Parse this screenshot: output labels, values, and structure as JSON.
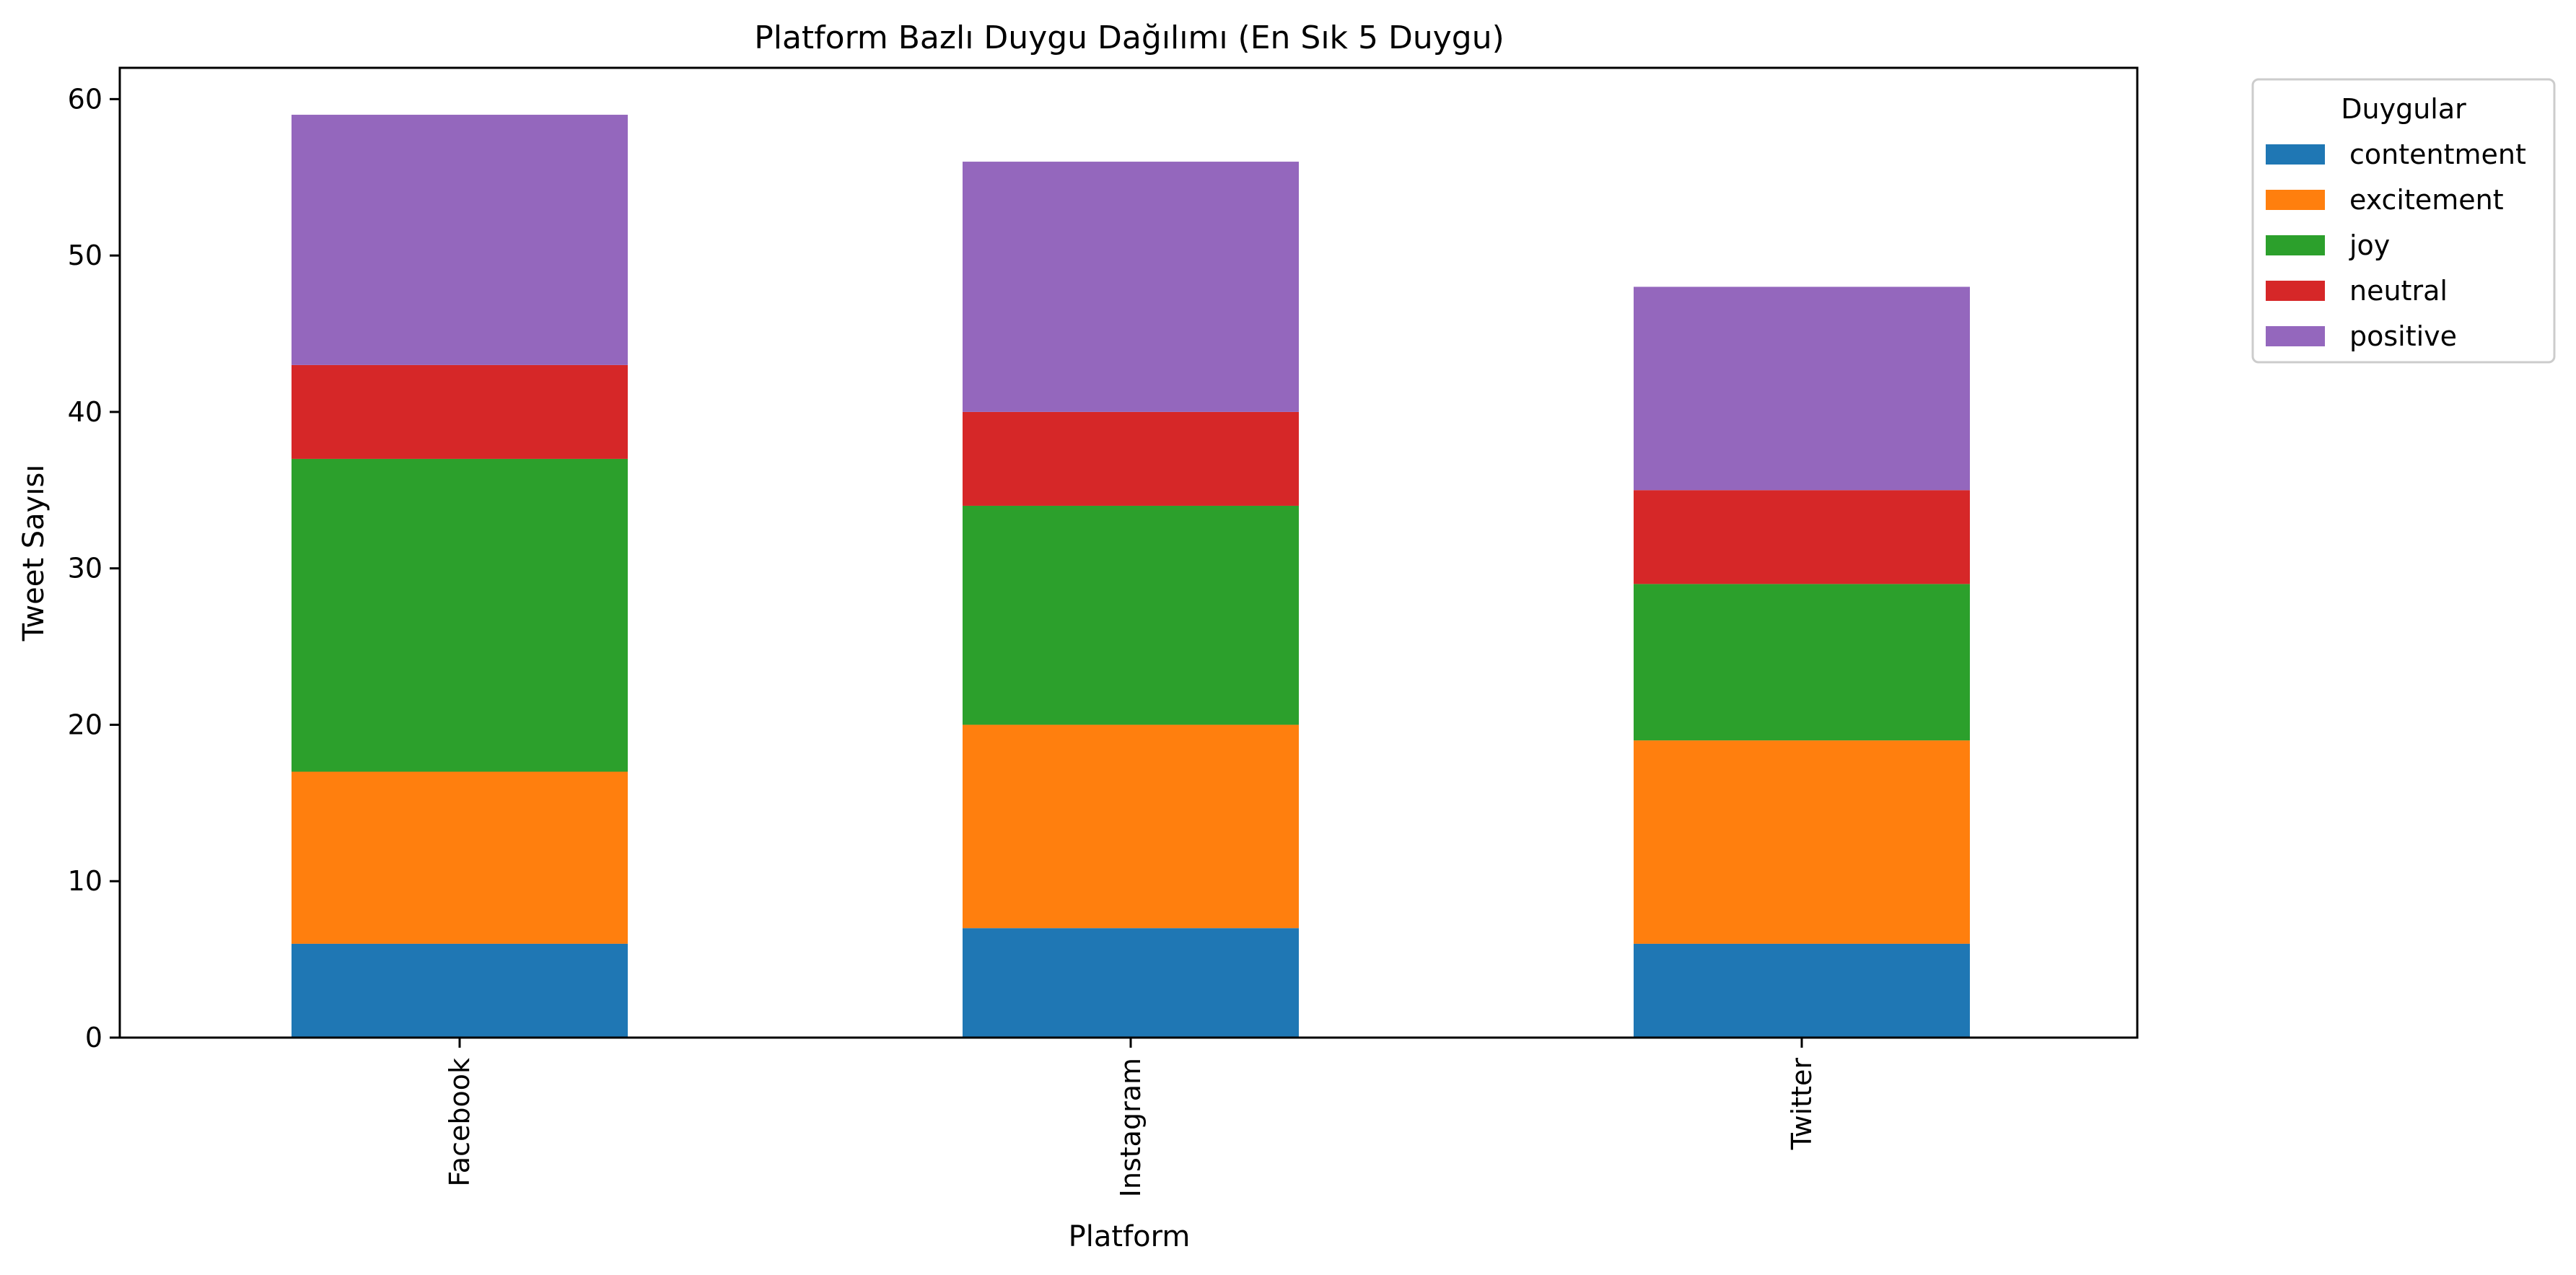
{
  "chart_data": {
    "type": "bar",
    "stacked": true,
    "title": "Platform Bazlı Duygu Dağılımı (En Sık 5 Duygu)",
    "xlabel": "Platform",
    "ylabel": "Tweet Sayısı",
    "categories": [
      "Facebook",
      "Instagram",
      "Twitter"
    ],
    "ylim": [
      0,
      62
    ],
    "yticks": [
      0,
      10,
      20,
      30,
      40,
      50,
      60
    ],
    "grid": false,
    "legend": {
      "title": "Duygular",
      "placement": "outside-top-right"
    },
    "series": [
      {
        "name": "contentment",
        "color": "#1f77b4",
        "values": [
          6,
          7,
          6
        ]
      },
      {
        "name": "excitement",
        "color": "#ff7f0e",
        "values": [
          11,
          13,
          13
        ]
      },
      {
        "name": "joy",
        "color": "#2ca02c",
        "values": [
          20,
          14,
          10
        ]
      },
      {
        "name": "neutral",
        "color": "#d62728",
        "values": [
          6,
          6,
          6
        ]
      },
      {
        "name": "positive",
        "color": "#9467bd",
        "values": [
          16,
          16,
          13
        ]
      }
    ]
  }
}
